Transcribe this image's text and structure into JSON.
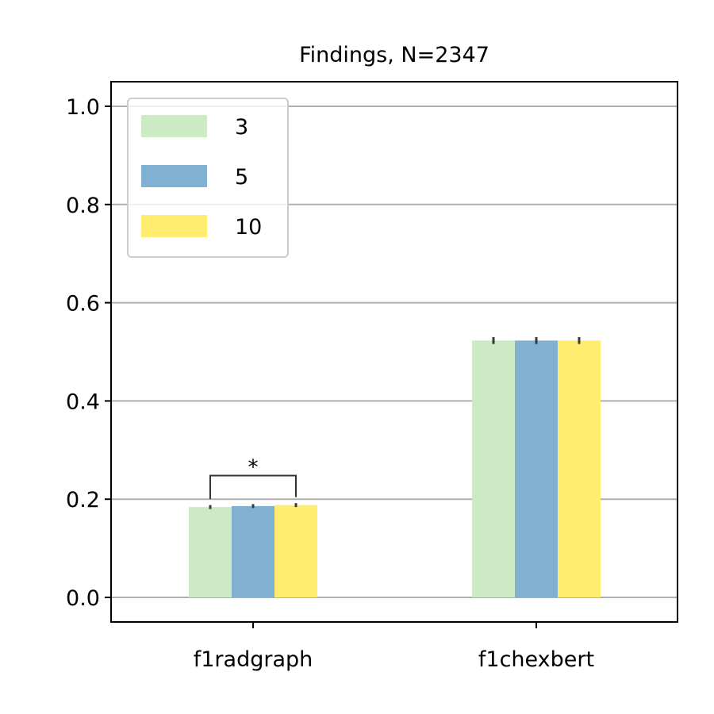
{
  "chart_data": {
    "type": "bar",
    "title": "Findings, N=2347",
    "xlabel": "",
    "ylabel": "",
    "categories": [
      "f1radgraph",
      "f1chexbert"
    ],
    "series": [
      {
        "name": "3",
        "color": "#ccebc5",
        "values": [
          0.184,
          0.523
        ],
        "err": [
          0.004,
          0.007
        ]
      },
      {
        "name": "5",
        "color": "#80b1d3",
        "values": [
          0.186,
          0.523
        ],
        "err": [
          0.004,
          0.007
        ]
      },
      {
        "name": "10",
        "color": "#ffed6f",
        "values": [
          0.188,
          0.523
        ],
        "err": [
          0.004,
          0.007
        ]
      }
    ],
    "ylim": [
      -0.05,
      1.05
    ],
    "yticks": [
      0.0,
      0.2,
      0.4,
      0.6,
      0.8,
      1.0
    ],
    "ytick_labels": [
      "0.0",
      "0.2",
      "0.4",
      "0.6",
      "0.8",
      "1.0"
    ],
    "grid": "y",
    "legend_placement": "top-left",
    "annotations": [
      {
        "text": "*",
        "category": "f1radgraph",
        "from_series": 0,
        "to_series": 2,
        "y": 0.248
      }
    ]
  }
}
